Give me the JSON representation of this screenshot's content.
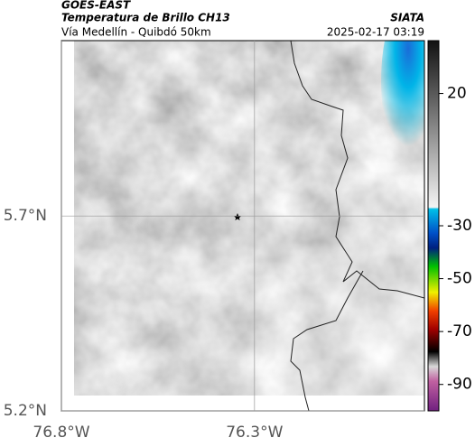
{
  "header": {
    "title": "GOES-EAST",
    "subtitle": "Temperatura de Brillo CH13",
    "source": "SIATA",
    "caption": "Vía Medellín - Quibdó 50km",
    "timestamp": "2025-02-17 03:19"
  },
  "map": {
    "xlim": [
      -76.8,
      -75.86
    ],
    "ylim": [
      5.2,
      6.15
    ],
    "xticks": [
      {
        "value": -76.8,
        "label": "76.8°W"
      },
      {
        "value": -76.3,
        "label": "76.3°W"
      }
    ],
    "yticks": [
      {
        "value": 5.7,
        "label": "5.7°N"
      },
      {
        "value": 5.2,
        "label": "5.2°N"
      }
    ]
  },
  "colorbar": {
    "lim": [
      -100,
      40
    ],
    "ticks": [
      20,
      -30,
      -50,
      -70,
      -90
    ]
  }
}
